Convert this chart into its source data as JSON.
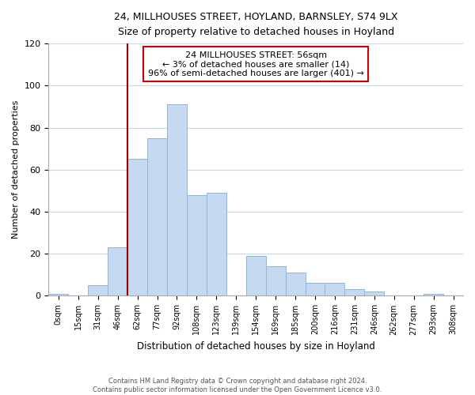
{
  "title1": "24, MILLHOUSES STREET, HOYLAND, BARNSLEY, S74 9LX",
  "title2": "Size of property relative to detached houses in Hoyland",
  "xlabel": "Distribution of detached houses by size in Hoyland",
  "ylabel": "Number of detached properties",
  "bar_labels": [
    "0sqm",
    "15sqm",
    "31sqm",
    "46sqm",
    "62sqm",
    "77sqm",
    "92sqm",
    "108sqm",
    "123sqm",
    "139sqm",
    "154sqm",
    "169sqm",
    "185sqm",
    "200sqm",
    "216sqm",
    "231sqm",
    "246sqm",
    "262sqm",
    "277sqm",
    "293sqm",
    "308sqm"
  ],
  "bar_values": [
    1,
    0,
    5,
    23,
    65,
    75,
    91,
    48,
    49,
    0,
    19,
    14,
    11,
    6,
    6,
    3,
    2,
    0,
    0,
    1,
    0
  ],
  "bar_color": "#c5d9f1",
  "bar_edge_color": "#8db4e2",
  "annotation_text_line1": "24 MILLHOUSES STREET: 56sqm",
  "annotation_text_line2": "← 3% of detached houses are smaller (14)",
  "annotation_text_line3": "96% of semi-detached houses are larger (401) →",
  "annotation_box_color": "#ffffff",
  "annotation_box_edge": "#cc0000",
  "ylim": [
    0,
    120
  ],
  "footer1": "Contains HM Land Registry data © Crown copyright and database right 2024.",
  "footer2": "Contains public sector information licensed under the Open Government Licence v3.0."
}
